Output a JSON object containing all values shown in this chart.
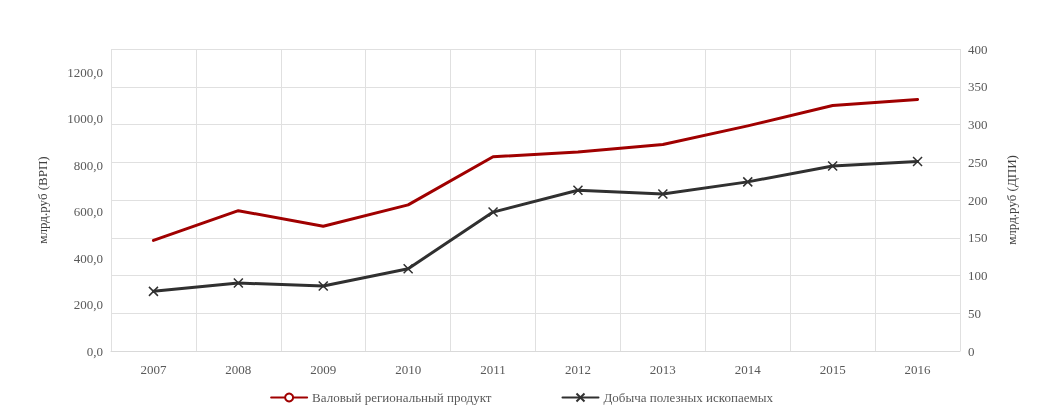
{
  "chart_data": {
    "type": "line",
    "ylabel": "млрд.руб (ВРП)",
    "y2label": "млрд.руб (ДПИ)",
    "categories": [
      "2007",
      "2008",
      "2009",
      "2010",
      "2011",
      "2012",
      "2013",
      "2014",
      "2015",
      "2016"
    ],
    "series": [
      {
        "name": "Валовый региональный продукт",
        "color": "#a00000",
        "marker": "none",
        "values": [
          476,
          604,
          537,
          629,
          836,
          857,
          889,
          969,
          1057,
          1083
        ]
      },
      {
        "name": "Добыча полезных ископаемых",
        "color": "#303030",
        "marker": "cross",
        "axis": "y2",
        "values": [
          79,
          90,
          86,
          109,
          184,
          213,
          208,
          224,
          245,
          251
        ]
      }
    ],
    "ylim": [
      0,
      1300
    ],
    "yticks": [
      {
        "value": 0,
        "label": "0,0"
      },
      {
        "value": 200,
        "label": "200,0"
      },
      {
        "value": 400,
        "label": "400,0"
      },
      {
        "value": 600,
        "label": "600,0"
      },
      {
        "value": 800,
        "label": "800,0"
      },
      {
        "value": 1000,
        "label": "1000,0"
      },
      {
        "value": 1200,
        "label": "1200,0"
      }
    ],
    "y2lim": [
      0,
      400
    ],
    "y2ticks": [
      0,
      50,
      100,
      150,
      200,
      250,
      300,
      350,
      400
    ],
    "grid": true,
    "legend": "bottom",
    "line_style": "solid"
  }
}
